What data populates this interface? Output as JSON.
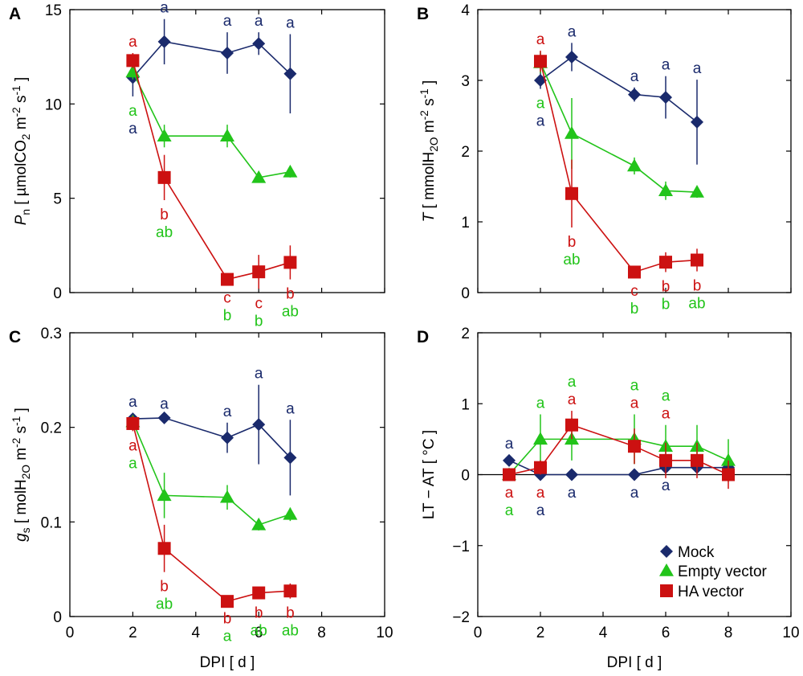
{
  "colors": {
    "mock": "#1a2a6c",
    "empty": "#22c41a",
    "ha": "#cc1111",
    "axis": "#000000"
  },
  "legend": {
    "items": [
      {
        "label": "Mock",
        "series": "mock",
        "marker": "diamond"
      },
      {
        "label": "Empty vector",
        "series": "empty",
        "marker": "triangle"
      },
      {
        "label": "HA vector",
        "series": "ha",
        "marker": "square"
      }
    ]
  },
  "chart_data": [
    {
      "panel": "A",
      "type": "line",
      "ylabel": "P_n [ µmolCO_2 m^-2 s^-1 ]",
      "xlabel": "",
      "xlim": [
        0,
        10
      ],
      "ylim": [
        0,
        15
      ],
      "xticks": [
        0,
        2,
        4,
        6,
        8,
        10
      ],
      "yticks": [
        0,
        5,
        10,
        15
      ],
      "show_xticklabels": false,
      "zero_line": false,
      "series": [
        {
          "name": "Mock",
          "key": "mock",
          "points": [
            {
              "x": 2,
              "y": 11.4,
              "err": 1.0,
              "letter": "a"
            },
            {
              "x": 3,
              "y": 13.3,
              "err": 1.2,
              "letter": "a"
            },
            {
              "x": 5,
              "y": 12.7,
              "err": 1.1,
              "letter": "a"
            },
            {
              "x": 6,
              "y": 13.2,
              "err": 0.6,
              "letter": "a"
            },
            {
              "x": 7,
              "y": 11.6,
              "err": 2.1,
              "letter": "a"
            }
          ]
        },
        {
          "name": "Empty vector",
          "key": "empty",
          "points": [
            {
              "x": 2,
              "y": 11.7,
              "err": 0.4,
              "letter": "a"
            },
            {
              "x": 3,
              "y": 8.3,
              "err": 0.6,
              "letter": "ab"
            },
            {
              "x": 5,
              "y": 8.3,
              "err": 0.6,
              "letter": "b"
            },
            {
              "x": 6,
              "y": 6.1,
              "err": 0.2,
              "letter": "b"
            },
            {
              "x": 7,
              "y": 6.4,
              "err": 0.3,
              "letter": "ab"
            }
          ]
        },
        {
          "name": "HA vector",
          "key": "ha",
          "points": [
            {
              "x": 2,
              "y": 12.3,
              "err": 0.4,
              "letter": "a"
            },
            {
              "x": 3,
              "y": 6.1,
              "err": 1.2,
              "letter": "b"
            },
            {
              "x": 5,
              "y": 0.7,
              "err": 0.2,
              "letter": "c"
            },
            {
              "x": 6,
              "y": 1.1,
              "err": 0.9,
              "letter": "c"
            },
            {
              "x": 7,
              "y": 1.6,
              "err": 0.9,
              "letter": "b"
            }
          ]
        }
      ]
    },
    {
      "panel": "B",
      "type": "line",
      "ylabel": "T [ mmolH_2O m^-2 s^-1 ]",
      "xlabel": "",
      "xlim": [
        0,
        10
      ],
      "ylim": [
        0,
        4
      ],
      "xticks": [
        0,
        2,
        4,
        6,
        8,
        10
      ],
      "yticks": [
        0,
        1,
        2,
        3,
        4
      ],
      "show_xticklabels": false,
      "zero_line": false,
      "series": [
        {
          "name": "Mock",
          "key": "mock",
          "points": [
            {
              "x": 2,
              "y": 3.0,
              "err": 0.12,
              "letter": "a"
            },
            {
              "x": 3,
              "y": 3.33,
              "err": 0.2,
              "letter": "a"
            },
            {
              "x": 5,
              "y": 2.8,
              "err": 0.1,
              "letter": "a"
            },
            {
              "x": 6,
              "y": 2.76,
              "err": 0.3,
              "letter": "a"
            },
            {
              "x": 7,
              "y": 2.41,
              "err": 0.6,
              "letter": "a"
            }
          ]
        },
        {
          "name": "Empty vector",
          "key": "empty",
          "points": [
            {
              "x": 2,
              "y": 3.25,
              "err": 0.15,
              "letter": "a"
            },
            {
              "x": 3,
              "y": 2.25,
              "err": 0.5,
              "letter": "ab"
            },
            {
              "x": 5,
              "y": 1.79,
              "err": 0.12,
              "letter": "b"
            },
            {
              "x": 6,
              "y": 1.44,
              "err": 0.13,
              "letter": "b"
            },
            {
              "x": 7,
              "y": 1.42,
              "err": 0.08,
              "letter": "ab"
            }
          ]
        },
        {
          "name": "HA vector",
          "key": "ha",
          "points": [
            {
              "x": 2,
              "y": 3.27,
              "err": 0.15,
              "letter": "a"
            },
            {
              "x": 3,
              "y": 1.4,
              "err": 0.48,
              "letter": "b"
            },
            {
              "x": 5,
              "y": 0.29,
              "err": 0.06,
              "letter": "c"
            },
            {
              "x": 6,
              "y": 0.43,
              "err": 0.14,
              "letter": "b"
            },
            {
              "x": 7,
              "y": 0.46,
              "err": 0.16,
              "letter": "b"
            }
          ]
        }
      ]
    },
    {
      "panel": "C",
      "type": "line",
      "ylabel": "g_s [ molH_2O m^-2 s^-1 ]",
      "xlabel": "DPI [ d ]",
      "xlim": [
        0,
        10
      ],
      "ylim": [
        0,
        0.3
      ],
      "xticks": [
        0,
        2,
        4,
        6,
        8,
        10
      ],
      "yticks": [
        0,
        0.1,
        0.2,
        0.3
      ],
      "ytick_labels": [
        "0",
        "0.1",
        "0.2",
        "0.3"
      ],
      "show_xticklabels": true,
      "zero_line": false,
      "series": [
        {
          "name": "Mock",
          "key": "mock",
          "points": [
            {
              "x": 2,
              "y": 0.209,
              "err": 0.006,
              "letter": "a"
            },
            {
              "x": 3,
              "y": 0.21,
              "err": 0.003,
              "letter": "a"
            },
            {
              "x": 5,
              "y": 0.189,
              "err": 0.016,
              "letter": "a"
            },
            {
              "x": 6,
              "y": 0.203,
              "err": 0.042,
              "letter": "a"
            },
            {
              "x": 7,
              "y": 0.168,
              "err": 0.04,
              "letter": "a"
            }
          ]
        },
        {
          "name": "Empty vector",
          "key": "empty",
          "points": [
            {
              "x": 2,
              "y": 0.206,
              "err": 0.004,
              "letter": "a"
            },
            {
              "x": 3,
              "y": 0.128,
              "err": 0.024,
              "letter": "ab"
            },
            {
              "x": 5,
              "y": 0.126,
              "err": 0.013,
              "letter": "a"
            },
            {
              "x": 6,
              "y": 0.097,
              "err": 0.006,
              "letter": "ab"
            },
            {
              "x": 7,
              "y": 0.108,
              "err": 0.007,
              "letter": "ab"
            }
          ]
        },
        {
          "name": "HA vector",
          "key": "ha",
          "points": [
            {
              "x": 2,
              "y": 0.204,
              "err": 0.008,
              "letter": "a"
            },
            {
              "x": 3,
              "y": 0.072,
              "err": 0.025,
              "letter": "b"
            },
            {
              "x": 5,
              "y": 0.016,
              "err": 0.003,
              "letter": "b"
            },
            {
              "x": 6,
              "y": 0.025,
              "err": 0.006,
              "letter": "b"
            },
            {
              "x": 7,
              "y": 0.027,
              "err": 0.008,
              "letter": "b"
            }
          ]
        }
      ]
    },
    {
      "panel": "D",
      "type": "line",
      "ylabel": "LT − AT [ °C ]",
      "xlabel": "DPI [ d ]",
      "xlim": [
        0,
        10
      ],
      "ylim": [
        -2,
        2
      ],
      "xticks": [
        0,
        2,
        4,
        6,
        8,
        10
      ],
      "yticks": [
        -2,
        -1,
        0,
        1,
        2
      ],
      "ytick_labels": [
        "−2",
        "−1",
        "0",
        "1",
        "2"
      ],
      "show_xticklabels": true,
      "zero_line": true,
      "series": [
        {
          "name": "Mock",
          "key": "mock",
          "points": [
            {
              "x": 1,
              "y": 0.2,
              "err": 0.08,
              "letter": "a",
              "pos": "above"
            },
            {
              "x": 2,
              "y": 0.0,
              "err": 0.05,
              "letter": "a",
              "pos": "below"
            },
            {
              "x": 3,
              "y": 0.0,
              "err": 0.05,
              "letter": "a",
              "pos": "below"
            },
            {
              "x": 5,
              "y": 0.0,
              "err": 0.05,
              "letter": "a",
              "pos": "below"
            },
            {
              "x": 6,
              "y": 0.1,
              "err": 0.05,
              "letter": "a",
              "pos": "below"
            },
            {
              "x": 7,
              "y": 0.1,
              "err": 0.05,
              "letter": "",
              "pos": "below"
            },
            {
              "x": 8,
              "y": 0.1,
              "err": 0.05,
              "letter": "",
              "pos": "below"
            }
          ]
        },
        {
          "name": "Empty vector",
          "key": "empty",
          "points": [
            {
              "x": 1,
              "y": 0.0,
              "err": 0.05,
              "letter": "a",
              "pos": "below"
            },
            {
              "x": 2,
              "y": 0.5,
              "err": 0.35,
              "letter": "a",
              "pos": "above"
            },
            {
              "x": 3,
              "y": 0.5,
              "err": 0.3,
              "letter": "a",
              "pos": "above"
            },
            {
              "x": 5,
              "y": 0.5,
              "err": 0.35,
              "letter": "a",
              "pos": "above"
            },
            {
              "x": 6,
              "y": 0.4,
              "err": 0.3,
              "letter": "a",
              "pos": "above"
            },
            {
              "x": 7,
              "y": 0.4,
              "err": 0.3,
              "letter": "",
              "pos": "above"
            },
            {
              "x": 8,
              "y": 0.2,
              "err": 0.3,
              "letter": "",
              "pos": "above"
            }
          ]
        },
        {
          "name": "HA vector",
          "key": "ha",
          "points": [
            {
              "x": 1,
              "y": 0.0,
              "err": 0.05,
              "letter": "a",
              "pos": "below"
            },
            {
              "x": 2,
              "y": 0.1,
              "err": 0.1,
              "letter": "a",
              "pos": "below"
            },
            {
              "x": 3,
              "y": 0.7,
              "err": 0.2,
              "letter": "a",
              "pos": "above"
            },
            {
              "x": 5,
              "y": 0.4,
              "err": 0.25,
              "letter": "a",
              "pos": "above"
            },
            {
              "x": 6,
              "y": 0.2,
              "err": 0.25,
              "letter": "a",
              "pos": "above"
            },
            {
              "x": 7,
              "y": 0.2,
              "err": 0.25,
              "letter": "",
              "pos": "above"
            },
            {
              "x": 8,
              "y": 0.0,
              "err": 0.2,
              "letter": "",
              "pos": "above"
            }
          ]
        }
      ]
    }
  ]
}
